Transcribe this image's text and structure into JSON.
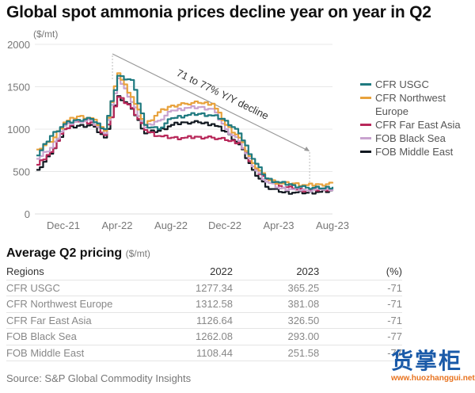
{
  "title": "Global spot ammonia prices decline year on year in Q2",
  "chart_data": {
    "type": "line",
    "title": "Global spot ammonia prices decline year on year in Q2",
    "ylabel": "($/mt)",
    "xlabel": "",
    "ylim": [
      0,
      2000
    ],
    "yticks": [
      "0",
      "500",
      "1000",
      "1500",
      "2000"
    ],
    "grid": true,
    "legend_position": "right",
    "x": [
      "Oct-21",
      "Nov-21",
      "Dec-21",
      "Jan-22",
      "Feb-22",
      "Mar-22",
      "Apr-22",
      "May-22",
      "Jun-22",
      "Jul-22",
      "Aug-22",
      "Sep-22",
      "Oct-22",
      "Nov-22",
      "Dec-22",
      "Jan-23",
      "Feb-23",
      "Mar-23",
      "Apr-23",
      "May-23",
      "Jun-23",
      "Jul-23",
      "Aug-23"
    ],
    "xticks": [
      "Dec-21",
      "Apr-22",
      "Aug-22",
      "Dec-22",
      "Apr-23",
      "Aug-23"
    ],
    "annotation": "71 to 77% Y/Y decline",
    "series": [
      {
        "name": "CFR USGC",
        "color": "#1f7a80",
        "values": [
          690,
          920,
          1060,
          1110,
          1120,
          1000,
          1630,
          1580,
          1050,
          1000,
          1130,
          1160,
          1180,
          1160,
          1100,
          950,
          650,
          420,
          370,
          340,
          310,
          300,
          320
        ]
      },
      {
        "name": "CFR Northwest Europe",
        "color": "#e8a23d",
        "values": [
          760,
          850,
          1080,
          1150,
          1130,
          980,
          1660,
          1380,
          1050,
          1200,
          1280,
          1300,
          1310,
          1300,
          1050,
          900,
          600,
          420,
          360,
          360,
          340,
          350,
          360
        ]
      },
      {
        "name": "CFR Far East Asia",
        "color": "#b8285a",
        "values": [
          580,
          730,
          1000,
          1090,
          1080,
          930,
          1380,
          1250,
          990,
          920,
          900,
          900,
          910,
          900,
          870,
          840,
          560,
          410,
          330,
          300,
          280,
          290,
          300
        ]
      },
      {
        "name": "FOB Black Sea",
        "color": "#c9a3cf",
        "values": [
          650,
          780,
          1040,
          1100,
          1100,
          950,
          1600,
          1320,
          1020,
          1100,
          1220,
          1250,
          1260,
          1240,
          1000,
          860,
          560,
          380,
          300,
          290,
          280,
          290,
          300
        ]
      },
      {
        "name": "FOB Middle East",
        "color": "#111820",
        "values": [
          520,
          710,
          1000,
          1040,
          1050,
          900,
          1390,
          1240,
          950,
          980,
          1050,
          1080,
          1080,
          1060,
          970,
          820,
          520,
          320,
          260,
          250,
          250,
          260,
          270
        ]
      }
    ]
  },
  "legend": [
    "CFR USGC",
    "CFR Northwest Europe",
    "CFR Far East Asia",
    "FOB Black Sea",
    "FOB Middle East"
  ],
  "table": {
    "title": "Average Q2 pricing",
    "unit": "($/mt)",
    "headers": [
      "Regions",
      "2022",
      "2023",
      "(%)"
    ],
    "rows": [
      [
        "CFR USGC",
        "1277.34",
        "365.25",
        "-71"
      ],
      [
        "CFR Northwest Europe",
        "1312.58",
        "381.08",
        "-71"
      ],
      [
        "CFR Far East Asia",
        "1126.64",
        "326.50",
        "-71"
      ],
      [
        "FOB Black Sea",
        "1262.08",
        "293.00",
        "-77"
      ],
      [
        "FOB Middle East",
        "1108.44",
        "251.58",
        "-77"
      ]
    ]
  },
  "source": "Source: S&P Global Commodity Insights",
  "watermark": {
    "chars": "货掌柜",
    "url": "www.huozhanggui.net"
  }
}
